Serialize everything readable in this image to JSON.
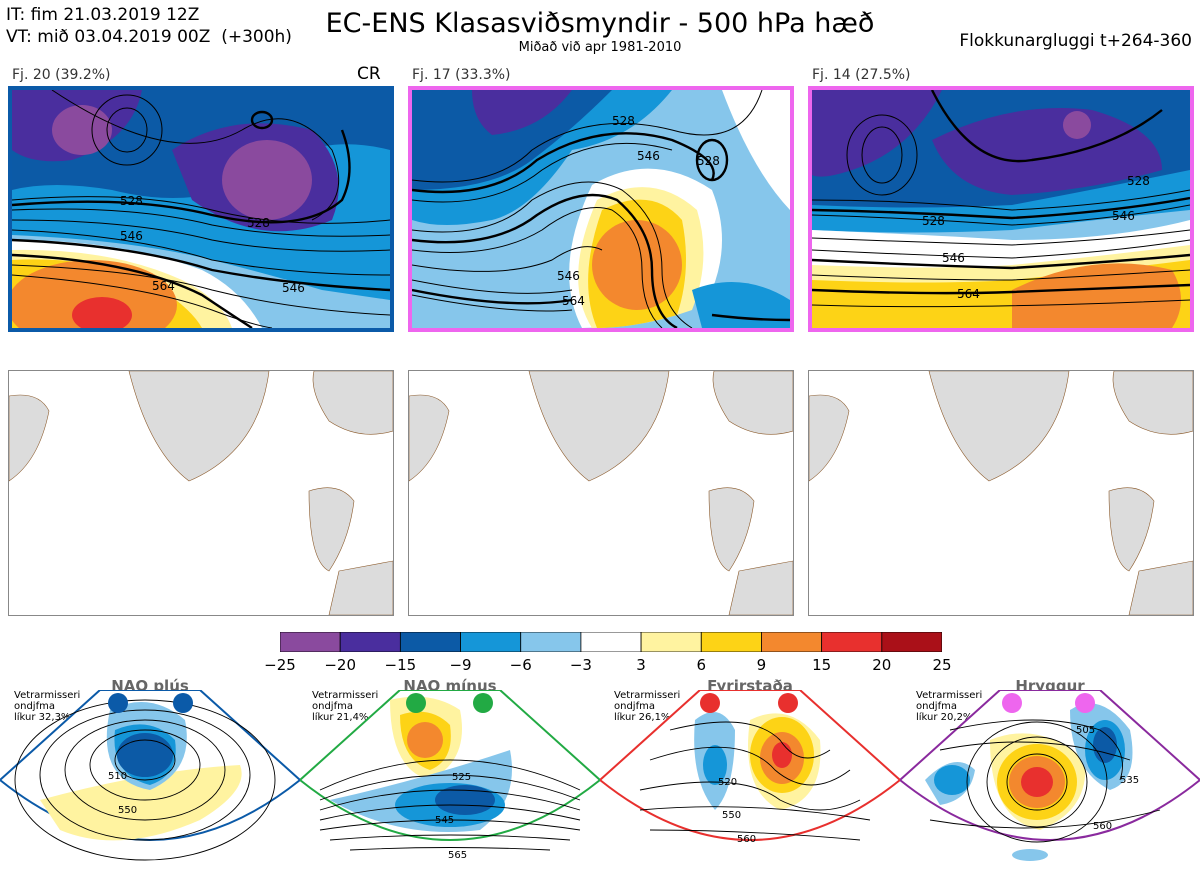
{
  "header": {
    "init_line": "IT: fim 21.03.2019 12Z",
    "valid_line": "VT: mið 03.04.2019 00Z  (+300h)",
    "title": "EC-ENS Klasasviðsmyndir - 500 hPa hæð",
    "subtitle": "Miðað við apr 1981-2010",
    "window": "Flokkunargluggi t+264-360"
  },
  "clusters": [
    {
      "label": "Fj. 20 (39.2%)",
      "tag": "CR",
      "border_color": "#0b5aa8",
      "contours": [
        "528",
        "546",
        "546",
        "564",
        "528",
        "546"
      ]
    },
    {
      "label": "Fj. 17 (33.3%)",
      "tag": "",
      "border_color": "#ee66ee",
      "contours": [
        "528",
        "546",
        "528",
        "546",
        "564",
        "546"
      ]
    },
    {
      "label": "Fj. 14 (27.5%)",
      "tag": "",
      "border_color": "#ee66ee",
      "contours": [
        "528",
        "528",
        "546",
        "546",
        "564"
      ]
    }
  ],
  "colorbar": {
    "colors": [
      "#8a4a9e",
      "#4a2e9e",
      "#0c5aa6",
      "#1596d8",
      "#86c6eb",
      "#ffffff",
      "#fff3a0",
      "#fdd316",
      "#f3882e",
      "#e8302e",
      "#aa1018"
    ],
    "ticks": [
      "−25",
      "−20",
      "−15",
      "−9",
      "−6",
      "−3",
      "3",
      "6",
      "9",
      "15",
      "20",
      "25"
    ]
  },
  "regimes": [
    {
      "name": "NAO plús",
      "stat": "Vetrarmisseri\nondjfma\nlíkur 32,3%",
      "dot_color": "#0b5aa8",
      "border_color": "#0b5aa8",
      "labels": [
        "510",
        "550"
      ]
    },
    {
      "name": "NAO mínus",
      "stat": "Vetrarmisseri\nondjfma\nlíkur 21,4%",
      "dot_color": "#22aa44",
      "border_color": "#22aa44",
      "labels": [
        "525",
        "545",
        "565"
      ]
    },
    {
      "name": "Fyrirstaða",
      "stat": "Vetrarmisseri\nondjfma\nlíkur 26,1%",
      "dot_color": "#e8302e",
      "border_color": "#e8302e",
      "labels": [
        "520",
        "550",
        "560"
      ]
    },
    {
      "name": "Hryggur",
      "stat": "Vetrarmisseri\nondjfma\nlíkur 20,2%",
      "dot_color": "#ee66ee",
      "border_color": "#8a2a9e",
      "labels": [
        "505",
        "535",
        "560"
      ]
    }
  ]
}
